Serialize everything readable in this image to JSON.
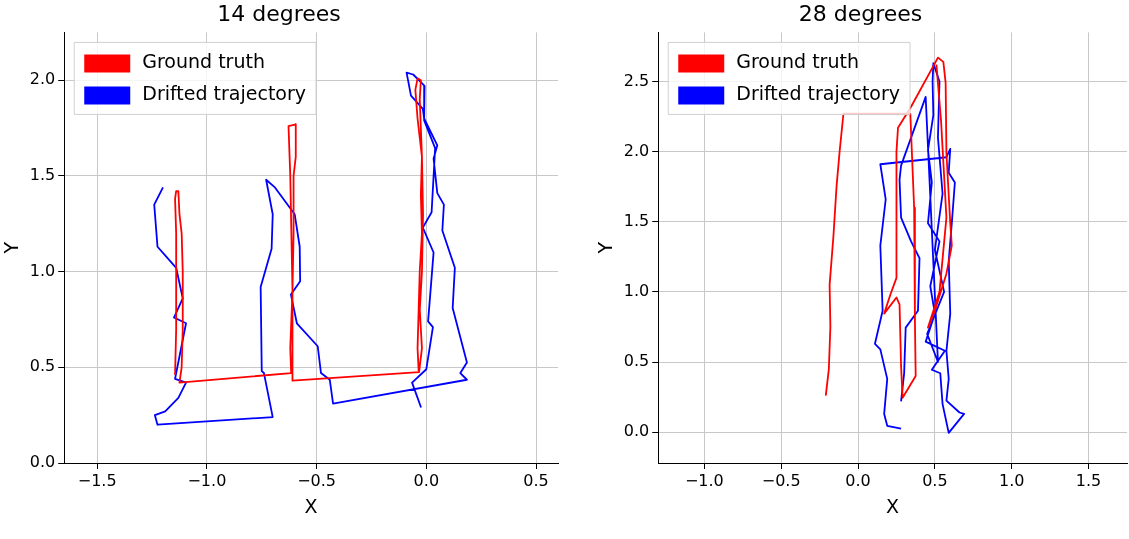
{
  "chart_data": [
    {
      "type": "line",
      "title": "14 degrees",
      "xlabel": "X",
      "ylabel": "Y",
      "xlim": [
        -1.65,
        0.6
      ],
      "ylim": [
        0,
        2.25
      ],
      "xticks": [
        {
          "value": -1.5,
          "label": "−1.5"
        },
        {
          "value": -1,
          "label": "−1.0"
        },
        {
          "value": -0.5,
          "label": "−0.5"
        },
        {
          "value": 0,
          "label": "0.0"
        },
        {
          "value": 0.5,
          "label": "0.5"
        }
      ],
      "yticks": [
        {
          "value": 0,
          "label": "0.0"
        },
        {
          "value": 0.5,
          "label": "0.5"
        },
        {
          "value": 1,
          "label": "1.0"
        },
        {
          "value": 1.5,
          "label": "1.5"
        },
        {
          "value": 2,
          "label": "2.0"
        }
      ],
      "grid": true,
      "legend": "top left",
      "series": [
        {
          "name": "Ground truth",
          "color": "#ff0000",
          "x": [
            -1.145,
            -1.14,
            -1.14,
            -1.145,
            -1.14,
            -1.13,
            -1.125,
            -1.115,
            -1.11,
            -1.11,
            -1.115,
            -1.125,
            -0.616,
            -0.62,
            -0.61,
            -0.615,
            -0.62,
            -0.628,
            -0.595,
            -0.595,
            -0.605,
            -0.605,
            -0.61,
            -0.61,
            -0.033,
            -0.02,
            -0.03,
            -0.02,
            -0.015,
            -0.02,
            -0.03,
            -0.025,
            -0.04,
            -0.05,
            -0.04,
            -0.02,
            -0.025,
            -0.02,
            -0.03,
            -0.035,
            -0.04,
            -0.035
          ],
          "values": [
            0.46,
            0.7,
            1.2,
            1.38,
            1.42,
            1.42,
            1.3,
            1.2,
            1.0,
            0.7,
            0.5,
            0.42,
            0.47,
            0.6,
            0.9,
            1.2,
            1.5,
            1.76,
            1.77,
            1.6,
            1.5,
            1.2,
            0.9,
            0.43,
            0.475,
            0.6,
            0.8,
            1.0,
            1.3,
            1.6,
            1.9,
            2.0,
            2.01,
            1.95,
            1.8,
            1.6,
            1.4,
            1.2,
            1.0,
            0.8,
            0.6,
            0.48
          ]
        },
        {
          "name": "Drifted trajectory",
          "color": "#0000ff",
          "x": [
            -1.2,
            -1.24,
            -1.225,
            -1.14,
            -1.11,
            -1.15,
            -1.095,
            -1.145,
            -1.095,
            -1.13,
            -1.19,
            -1.237,
            -1.225,
            -0.7,
            -0.74,
            -0.75,
            -0.755,
            -0.705,
            -0.7,
            -0.73,
            -0.69,
            -0.6,
            -0.577,
            -0.575,
            -0.617,
            -0.59,
            -0.495,
            -0.48,
            -0.44,
            -0.425,
            0.185,
            0.155,
            0.185,
            0.12,
            0.13,
            0.073,
            0.08,
            0.05,
            0.033,
            0.05,
            -0.01,
            -0.016,
            -0.07,
            -0.09,
            -0.06,
            -0.008,
            -0.01,
            0.04,
            0.024,
            -0.016,
            0.033,
            0.024,
            0.008,
            0.03,
            0.0,
            -0.065,
            -0.024
          ],
          "values": [
            1.44,
            1.35,
            1.13,
            1.02,
            0.86,
            0.76,
            0.73,
            0.44,
            0.42,
            0.34,
            0.27,
            0.25,
            0.2,
            0.24,
            0.47,
            0.48,
            0.92,
            1.12,
            1.3,
            1.48,
            1.44,
            1.3,
            1.13,
            0.95,
            0.88,
            0.73,
            0.61,
            0.47,
            0.435,
            0.31,
            0.435,
            0.47,
            0.525,
            0.81,
            1.02,
            1.215,
            1.35,
            1.41,
            1.59,
            1.66,
            1.8,
            1.85,
            1.92,
            2.04,
            2.03,
            1.97,
            1.79,
            1.645,
            1.31,
            1.23,
            1.1,
            0.97,
            0.74,
            0.71,
            0.49,
            0.42,
            0.29
          ]
        }
      ]
    },
    {
      "type": "line",
      "title": "28 degrees",
      "xlabel": "X",
      "ylabel": "Y",
      "xlim": [
        -1.3,
        1.75
      ],
      "ylim": [
        -0.22,
        2.85
      ],
      "xticks": [
        {
          "value": -1,
          "label": "−1.0"
        },
        {
          "value": -0.5,
          "label": "−0.5"
        },
        {
          "value": 0,
          "label": "0.0"
        },
        {
          "value": 0.5,
          "label": "0.5"
        },
        {
          "value": 1,
          "label": "1.0"
        },
        {
          "value": 1.5,
          "label": "1.5"
        }
      ],
      "yticks": [
        {
          "value": 0,
          "label": "0.0"
        },
        {
          "value": 0.5,
          "label": "0.5"
        },
        {
          "value": 1,
          "label": "1.0"
        },
        {
          "value": 1.5,
          "label": "1.5"
        },
        {
          "value": 2,
          "label": "2.0"
        },
        {
          "value": 2.5,
          "label": "2.5"
        }
      ],
      "grid": true,
      "legend": "top left",
      "series": [
        {
          "name": "Ground truth",
          "color": "#ff0000",
          "x": [
            -0.21,
            -0.19,
            -0.18,
            -0.185,
            -0.16,
            -0.14,
            -0.12,
            -0.095,
            0.34,
            0.365,
            0.37,
            0.375,
            0.29,
            0.28,
            0.27,
            0.25,
            0.17,
            0.21,
            0.25,
            0.25,
            0.26,
            0.345,
            0.52,
            0.555,
            0.57,
            0.575,
            0.6,
            0.61,
            0.575,
            0.5,
            0.455,
            0.53,
            0.575,
            0.54,
            0.51
          ],
          "values": [
            0.26,
            0.45,
            0.75,
            1.05,
            1.4,
            1.75,
            2.0,
            2.27,
            2.27,
            1.6,
            0.8,
            0.4,
            0.245,
            0.47,
            0.91,
            0.96,
            0.845,
            0.98,
            1.1,
            2.0,
            2.17,
            2.32,
            2.67,
            2.64,
            2.49,
            1.99,
            1.49,
            1.33,
            1.13,
            0.865,
            0.745,
            1.0,
            1.53,
            2.22,
            2.62
          ]
        },
        {
          "name": "Drifted trajectory",
          "color": "#0000ff",
          "x": [
            0.28,
            0.19,
            0.17,
            0.19,
            0.145,
            0.11,
            0.16,
            0.145,
            0.18,
            0.145,
            0.575,
            0.6,
            0.59,
            0.63,
            0.61,
            0.59,
            0.6,
            0.575,
            0.59,
            0.575,
            0.66,
            0.69,
            0.59,
            0.55,
            0.535,
            0.48,
            0.565,
            0.44,
            0.5,
            0.47,
            0.53,
            0.455,
            0.48,
            0.455,
            0.49,
            0.485,
            0.49,
            0.53,
            0.52,
            0.55,
            0.5,
            0.56,
            0.45,
            0.52,
            0.44,
            0.28,
            0.27,
            0.28,
            0.345,
            0.4,
            0.39,
            0.31,
            0.3,
            0.28
          ],
          "values": [
            0.025,
            0.045,
            0.13,
            0.38,
            0.59,
            0.63,
            0.865,
            1.33,
            1.66,
            1.91,
            1.96,
            2.02,
            1.85,
            1.78,
            1.49,
            1.22,
            0.845,
            0.58,
            0.38,
            0.225,
            0.14,
            0.13,
            -0.005,
            0.2,
            0.42,
            0.445,
            0.58,
            0.645,
            0.845,
            1.04,
            1.36,
            1.49,
            1.78,
            2.01,
            2.26,
            2.5,
            2.63,
            2.5,
            2.1,
            1.7,
            1.3,
            1.0,
            0.7,
            0.5,
            2.39,
            1.9,
            1.8,
            1.53,
            1.36,
            1.24,
            0.865,
            0.745,
            0.42,
            0.22
          ]
        }
      ]
    }
  ]
}
